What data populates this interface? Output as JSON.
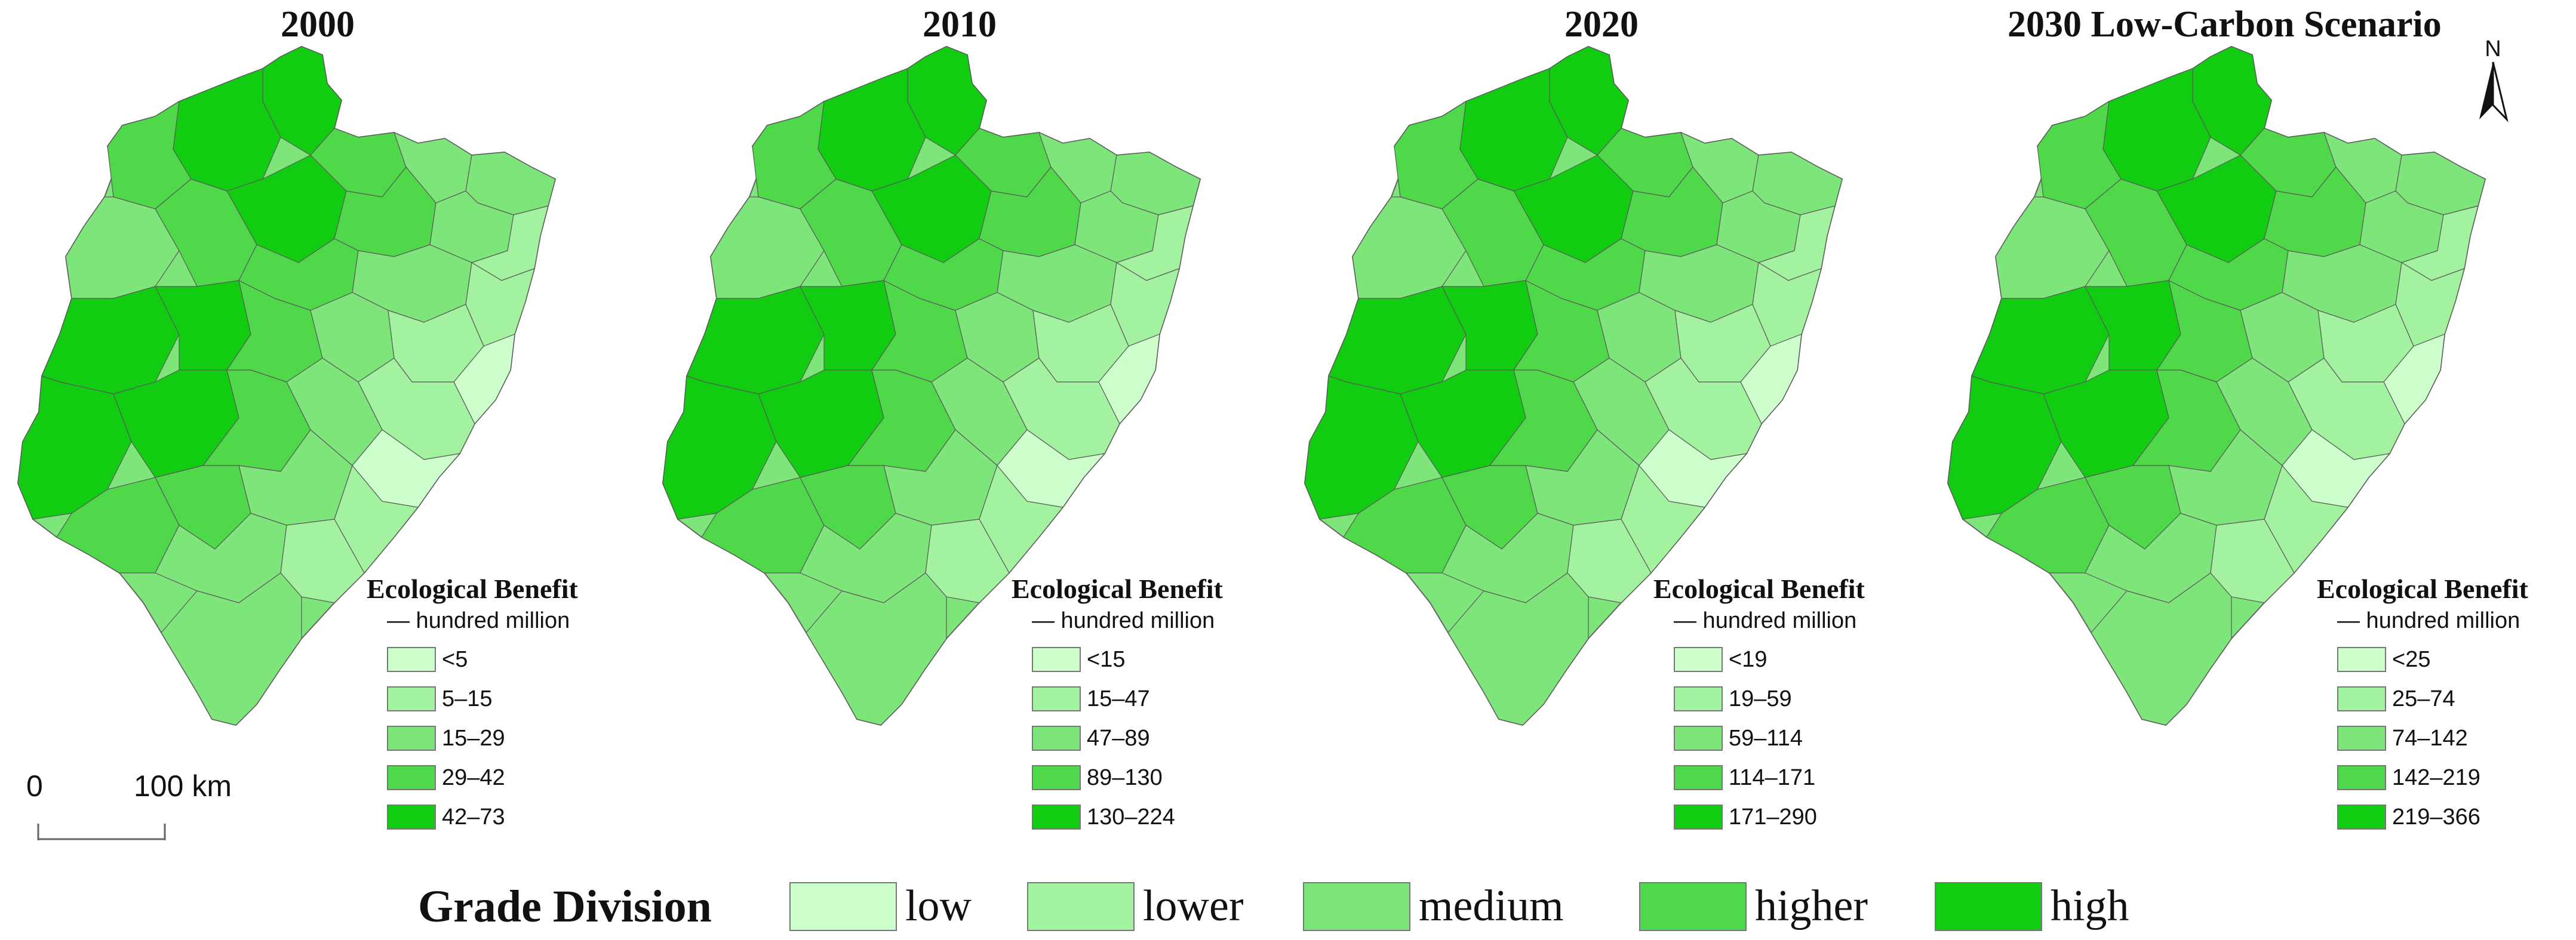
{
  "panels": [
    {
      "title": "2000",
      "legend_title": "Ecological Benefit",
      "unit": "— hundred million",
      "classes": [
        "<5",
        "5–15",
        "15–29",
        "29–42",
        "42–73"
      ]
    },
    {
      "title": "2010",
      "legend_title": "Ecological Benefit",
      "unit": "— hundred million",
      "classes": [
        "<15",
        "15–47",
        "47–89",
        "89–130",
        "130–224"
      ]
    },
    {
      "title": "2020",
      "legend_title": "Ecological Benefit",
      "unit": "— hundred million",
      "classes": [
        "<19",
        "19–59",
        "59–114",
        "114–171",
        "171–290"
      ]
    },
    {
      "title": "2030 Low-Carbon Scenario",
      "legend_title": "Ecological Benefit",
      "unit": "— hundred million",
      "classes": [
        "<25",
        "25–74",
        "74–142",
        "142–219",
        "219–366"
      ]
    }
  ],
  "north_label": "N",
  "scale": {
    "start": "0",
    "end": "100 km"
  },
  "grade_division": {
    "title": "Grade Division",
    "levels": [
      "low",
      "lower",
      "medium",
      "higher",
      "high"
    ],
    "colors": [
      "#ccffcc",
      "#a3f2a0",
      "#7ee57a",
      "#4ed84a",
      "#11cc11"
    ]
  }
}
